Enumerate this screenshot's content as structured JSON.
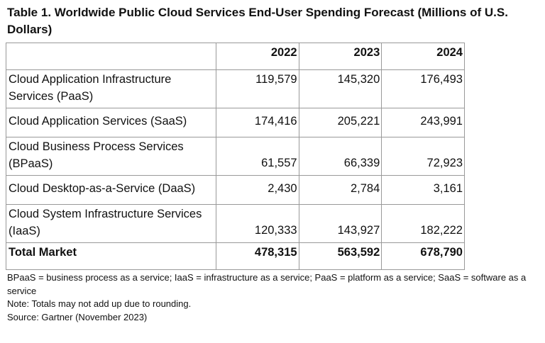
{
  "title": "Table 1. Worldwide Public Cloud Services End-User Spending Forecast (Millions of U.S. Dollars)",
  "table": {
    "headers": [
      "",
      "2022",
      "2023",
      "2024"
    ],
    "rows": [
      {
        "label": "Cloud Application Infrastructure Services (PaaS)",
        "values": [
          "119,579",
          "145,320",
          "176,493"
        ]
      },
      {
        "label": "Cloud Application Services (SaaS)",
        "values": [
          "174,416",
          "205,221",
          "243,991"
        ]
      },
      {
        "label": "Cloud Business Process Services (BPaaS)",
        "values": [
          "61,557",
          "66,339",
          "72,923"
        ]
      },
      {
        "label": "Cloud Desktop-as-a-Service (DaaS)",
        "values": [
          "2,430",
          "2,784",
          "3,161"
        ]
      },
      {
        "label": "Cloud System Infrastructure Services (IaaS)",
        "values": [
          "120,333",
          "143,927",
          "182,222"
        ]
      }
    ],
    "total": {
      "label": "Total Market",
      "values": [
        "478,315",
        "563,592",
        "678,790"
      ]
    }
  },
  "notes": [
    "BPaaS = business process as a service; IaaS = infrastructure as a service; PaaS = platform as a service; SaaS = software as a service",
    "Note: Totals may not add up due to rounding.",
    "Source: Gartner (November 2023)"
  ]
}
